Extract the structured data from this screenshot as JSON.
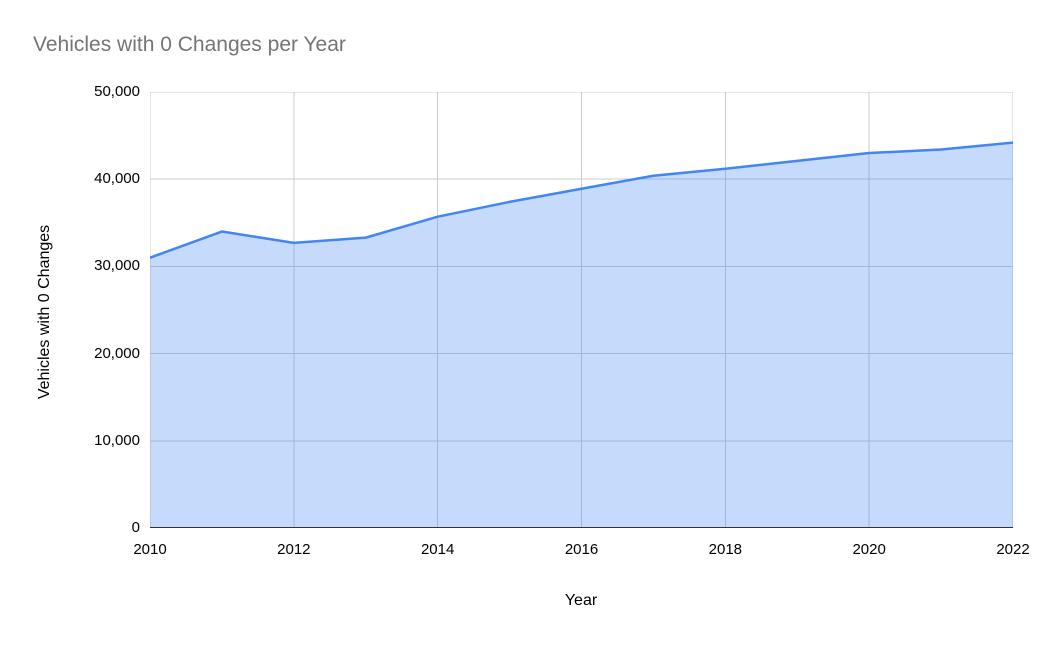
{
  "chart_data": {
    "type": "area",
    "title": "Vehicles with 0 Changes per Year",
    "xlabel": "Year",
    "ylabel": "Vehicles with 0 Changes",
    "series_name": "Vehicles with 0 Changes",
    "x": [
      2010,
      2011,
      2012,
      2013,
      2014,
      2015,
      2016,
      2017,
      2018,
      2019,
      2020,
      2021,
      2022
    ],
    "values": [
      31000,
      34000,
      32700,
      33300,
      35700,
      37400,
      38900,
      40400,
      41200,
      42100,
      43000,
      43400,
      44200
    ],
    "xlim": [
      2010,
      2022
    ],
    "ylim": [
      0,
      50000
    ],
    "grid": true,
    "legend": "none",
    "y_ticks": [
      {
        "value": 0,
        "label": "0"
      },
      {
        "value": 10000,
        "label": "10,000"
      },
      {
        "value": 20000,
        "label": "20,000"
      },
      {
        "value": 30000,
        "label": "30,000"
      },
      {
        "value": 40000,
        "label": "40,000"
      },
      {
        "value": 50000,
        "label": "50,000"
      }
    ],
    "x_ticks": [
      {
        "value": 2010,
        "label": "2010"
      },
      {
        "value": 2012,
        "label": "2012"
      },
      {
        "value": 2014,
        "label": "2014"
      },
      {
        "value": 2016,
        "label": "2016"
      },
      {
        "value": 2018,
        "label": "2018"
      },
      {
        "value": 2020,
        "label": "2020"
      },
      {
        "value": 2022,
        "label": "2022"
      }
    ],
    "colors": {
      "line": "#4285f4",
      "fill": "#4285f4",
      "fill_opacity": 0.3,
      "gridline": "#cccccc",
      "baseline": "#333333",
      "title_text": "#757575",
      "axis_text": "#000000",
      "background": "#ffffff"
    }
  }
}
